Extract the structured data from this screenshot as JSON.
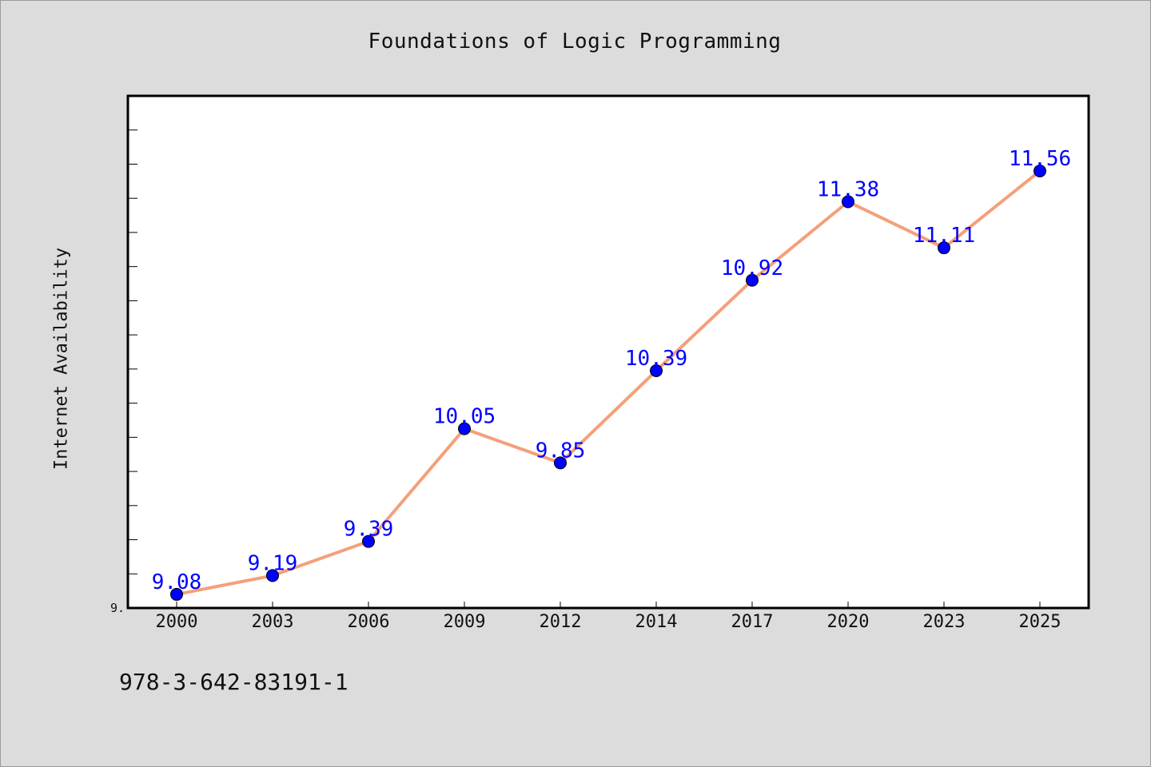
{
  "chart_data": {
    "type": "line",
    "title": "Foundations of Logic Programming",
    "xlabel": "",
    "ylabel": "Internet Availability",
    "categories": [
      "2000",
      "2003",
      "2006",
      "2009",
      "2012",
      "2014",
      "2017",
      "2020",
      "2023",
      "2025"
    ],
    "series": [
      {
        "values": [
          9.08,
          9.19,
          9.39,
          10.05,
          9.85,
          10.39,
          10.92,
          11.38,
          11.11,
          11.56
        ]
      }
    ],
    "data_labels": [
      "9.08",
      "9.19",
      "9.39",
      "10.05",
      "9.85",
      "10.39",
      "10.92",
      "11.38",
      "11.11",
      "11.56"
    ],
    "ylim": [
      9.0,
      12.0
    ],
    "y_origin_label": "9.",
    "grid": false,
    "legend": "none",
    "colors": {
      "line": "#f4a07a",
      "marker": "#0000ff",
      "data_label": "#0000ff",
      "background": "#dcdcdc",
      "plot_background": "#ffffff"
    }
  },
  "footer": {
    "isbn": "978-3-642-83191-1"
  }
}
